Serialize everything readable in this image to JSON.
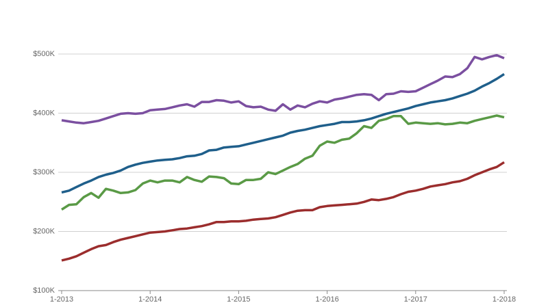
{
  "chart_data": {
    "type": "line",
    "categories": [
      "1-2013",
      null,
      null,
      null,
      null,
      null,
      null,
      null,
      null,
      null,
      null,
      null,
      "1-2014",
      null,
      null,
      null,
      null,
      null,
      null,
      null,
      null,
      null,
      null,
      null,
      "1-2015",
      null,
      null,
      null,
      null,
      null,
      null,
      null,
      null,
      null,
      null,
      null,
      "1-2016",
      null,
      null,
      null,
      null,
      null,
      null,
      null,
      null,
      null,
      null,
      null,
      "1-2017",
      null,
      null,
      null,
      null,
      null,
      null,
      null,
      null,
      null,
      null,
      null,
      "1-2018"
    ],
    "series": [
      {
        "color": "#7b4fa0",
        "values": [
          388000,
          386000,
          384000,
          383000,
          385000,
          387000,
          391000,
          395000,
          399000,
          400000,
          399000,
          400000,
          405000,
          406000,
          407000,
          410000,
          413000,
          415000,
          411000,
          419000,
          419000,
          422000,
          421000,
          418000,
          420000,
          412000,
          410000,
          411000,
          406000,
          404000,
          415000,
          406000,
          413000,
          410000,
          416000,
          420000,
          418000,
          423000,
          425000,
          428000,
          431000,
          432000,
          431000,
          422000,
          432000,
          433000,
          437000,
          436000,
          437000,
          443000,
          449000,
          455000,
          462000,
          461000,
          466000,
          476000,
          495000,
          491000,
          495000,
          498000,
          493000
        ]
      },
      {
        "color": "#1f5f8b",
        "values": [
          266000,
          269000,
          275000,
          281000,
          286000,
          292000,
          296000,
          299000,
          303000,
          309000,
          313000,
          316000,
          318000,
          320000,
          321000,
          322000,
          324000,
          327000,
          328000,
          331000,
          337000,
          338000,
          342000,
          343000,
          344000,
          347000,
          350000,
          353000,
          356000,
          359000,
          362000,
          367000,
          370000,
          372000,
          375000,
          378000,
          380000,
          382000,
          385000,
          385000,
          386000,
          388000,
          391000,
          395000,
          399000,
          402000,
          405000,
          408000,
          412000,
          415000,
          418000,
          420000,
          422000,
          425000,
          429000,
          433000,
          438000,
          445000,
          451000,
          458000,
          466000
        ]
      },
      {
        "color": "#5a9a46",
        "values": [
          237000,
          245000,
          246000,
          258000,
          265000,
          257000,
          272000,
          269000,
          265000,
          266000,
          270000,
          281000,
          286000,
          283000,
          286000,
          286000,
          283000,
          292000,
          287000,
          284000,
          293000,
          292000,
          290000,
          281000,
          280000,
          287000,
          287000,
          289000,
          300000,
          297000,
          303000,
          309000,
          314000,
          323000,
          328000,
          345000,
          352000,
          350000,
          355000,
          357000,
          366000,
          378000,
          375000,
          387000,
          390000,
          395000,
          395000,
          382000,
          384000,
          383000,
          382000,
          383000,
          381000,
          382000,
          384000,
          383000,
          387000,
          390000,
          393000,
          396000,
          393000
        ]
      },
      {
        "color": "#9b2d2d",
        "values": [
          151000,
          154000,
          158000,
          164000,
          170000,
          175000,
          177000,
          182000,
          186000,
          189000,
          192000,
          195000,
          198000,
          199000,
          200000,
          202000,
          204000,
          205000,
          207000,
          209000,
          212000,
          216000,
          216000,
          217000,
          217000,
          218000,
          220000,
          221000,
          222000,
          224000,
          228000,
          232000,
          235000,
          236000,
          236000,
          241000,
          243000,
          244000,
          245000,
          246000,
          247000,
          250000,
          254000,
          253000,
          255000,
          258000,
          263000,
          267000,
          269000,
          272000,
          276000,
          278000,
          280000,
          283000,
          285000,
          289000,
          295000,
          300000,
          305000,
          309000,
          317000
        ]
      }
    ],
    "ylim": [
      100000,
      550000
    ],
    "yticks": [
      {
        "value": 100000,
        "label": "$100K"
      },
      {
        "value": 200000,
        "label": "$200K"
      },
      {
        "value": 300000,
        "label": "$300K"
      },
      {
        "value": 400000,
        "label": "$400K"
      },
      {
        "value": 500000,
        "label": "$500K"
      }
    ],
    "grid": true
  }
}
